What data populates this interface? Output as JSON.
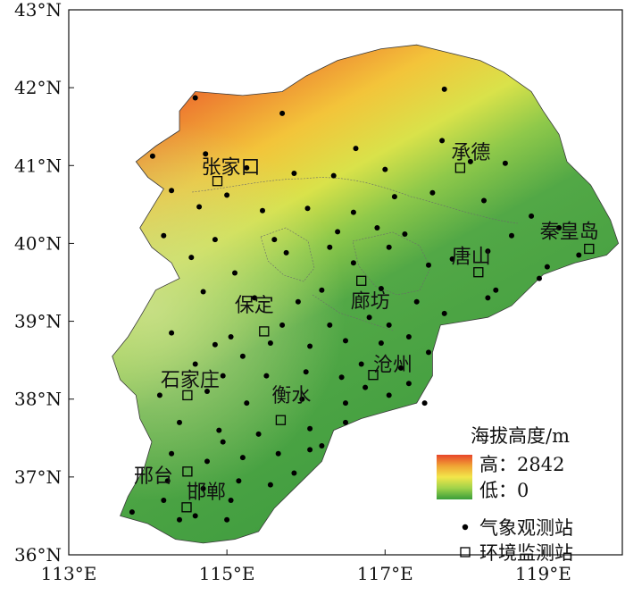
{
  "axes": {
    "x_ticks": [
      {
        "lon": 113,
        "label": "113°E"
      },
      {
        "lon": 115,
        "label": "115°E"
      },
      {
        "lon": 117,
        "label": "117°E"
      },
      {
        "lon": 119,
        "label": "119°E"
      }
    ],
    "y_ticks": [
      {
        "lat": 43,
        "label": "43°N"
      },
      {
        "lat": 42,
        "label": "42°N"
      },
      {
        "lat": 41,
        "label": "41°N"
      },
      {
        "lat": 40,
        "label": "40°N"
      },
      {
        "lat": 39,
        "label": "39°N"
      },
      {
        "lat": 38,
        "label": "38°N"
      },
      {
        "lat": 37,
        "label": "37°N"
      },
      {
        "lat": 36,
        "label": "36°N"
      }
    ],
    "lon_range": [
      113,
      120
    ],
    "lat_range": [
      36,
      43
    ]
  },
  "cities": [
    {
      "name": "张家口",
      "lon": 114.88,
      "lat": 40.8
    },
    {
      "name": "承德",
      "lon": 117.95,
      "lat": 40.97
    },
    {
      "name": "秦皇岛",
      "lon": 119.58,
      "lat": 39.93
    },
    {
      "name": "唐山",
      "lon": 118.18,
      "lat": 39.63
    },
    {
      "name": "保定",
      "lon": 115.47,
      "lat": 38.87
    },
    {
      "name": "廊坊",
      "lon": 116.7,
      "lat": 39.52
    },
    {
      "name": "沧州",
      "lon": 116.85,
      "lat": 38.31
    },
    {
      "name": "石家庄",
      "lon": 114.5,
      "lat": 38.05
    },
    {
      "name": "衡水",
      "lon": 115.68,
      "lat": 37.73
    },
    {
      "name": "邢台",
      "lon": 114.5,
      "lat": 37.07
    },
    {
      "name": "邯郸",
      "lon": 114.49,
      "lat": 36.61
    }
  ],
  "legend": {
    "title": "海拔高度/m",
    "high_label": "高：2842",
    "low_label": "低：0",
    "elevation_max": 2842,
    "elevation_min": 0,
    "gradient_colors": [
      "#e8452a",
      "#f0a434",
      "#f2e64a",
      "#9fd24a",
      "#3a9e3a"
    ],
    "weather_station_label": "气象观测站",
    "env_station_label": "环境监测站"
  },
  "colors": {
    "mountain_high": "#e8452a",
    "mountain_mid": "#f2c83a",
    "plain": "#4aa347",
    "border": "#555555"
  },
  "weather_stations": [
    [
      114.6,
      41.87
    ],
    [
      117.75,
      41.98
    ],
    [
      115.7,
      41.67
    ],
    [
      114.06,
      41.12
    ],
    [
      114.73,
      41.15
    ],
    [
      115.25,
      40.97
    ],
    [
      115.85,
      40.9
    ],
    [
      116.63,
      41.22
    ],
    [
      117.72,
      41.32
    ],
    [
      118.08,
      41.05
    ],
    [
      118.52,
      41.03
    ],
    [
      117.0,
      40.95
    ],
    [
      116.35,
      40.87
    ],
    [
      115.0,
      40.62
    ],
    [
      114.3,
      40.68
    ],
    [
      114.65,
      40.47
    ],
    [
      115.45,
      40.42
    ],
    [
      116.02,
      40.45
    ],
    [
      116.6,
      40.4
    ],
    [
      117.12,
      40.6
    ],
    [
      117.6,
      40.65
    ],
    [
      118.25,
      40.55
    ],
    [
      118.85,
      40.35
    ],
    [
      119.2,
      40.2
    ],
    [
      119.45,
      39.85
    ],
    [
      114.2,
      40.1
    ],
    [
      114.55,
      39.82
    ],
    [
      115.1,
      39.62
    ],
    [
      115.75,
      39.88
    ],
    [
      116.3,
      39.95
    ],
    [
      116.6,
      39.75
    ],
    [
      117.05,
      39.95
    ],
    [
      117.55,
      39.72
    ],
    [
      117.85,
      39.8
    ],
    [
      118.4,
      39.4
    ],
    [
      118.95,
      39.55
    ],
    [
      119.05,
      39.7
    ],
    [
      114.7,
      39.38
    ],
    [
      115.35,
      39.3
    ],
    [
      115.9,
      39.25
    ],
    [
      116.2,
      39.4
    ],
    [
      116.95,
      39.42
    ],
    [
      117.4,
      39.25
    ],
    [
      117.75,
      39.1
    ],
    [
      118.3,
      39.3
    ],
    [
      114.3,
      38.85
    ],
    [
      115.05,
      38.8
    ],
    [
      115.55,
      38.72
    ],
    [
      116.05,
      38.68
    ],
    [
      116.5,
      38.75
    ],
    [
      116.95,
      38.72
    ],
    [
      117.3,
      38.8
    ],
    [
      114.6,
      38.45
    ],
    [
      114.95,
      38.3
    ],
    [
      115.5,
      38.3
    ],
    [
      116.0,
      38.35
    ],
    [
      116.45,
      38.28
    ],
    [
      117.2,
      38.4
    ],
    [
      117.55,
      38.6
    ],
    [
      114.15,
      38.05
    ],
    [
      114.75,
      38.1
    ],
    [
      115.25,
      37.95
    ],
    [
      115.95,
      38.0
    ],
    [
      116.5,
      37.95
    ],
    [
      117.05,
      38.05
    ],
    [
      114.4,
      37.7
    ],
    [
      114.9,
      37.6
    ],
    [
      115.4,
      37.55
    ],
    [
      116.05,
      37.62
    ],
    [
      116.5,
      37.7
    ],
    [
      114.3,
      37.3
    ],
    [
      114.75,
      37.2
    ],
    [
      115.2,
      37.25
    ],
    [
      115.65,
      37.3
    ],
    [
      116.05,
      37.35
    ],
    [
      114.25,
      36.95
    ],
    [
      114.7,
      36.85
    ],
    [
      115.15,
      36.95
    ],
    [
      115.55,
      36.9
    ],
    [
      114.2,
      36.7
    ],
    [
      114.6,
      36.5
    ],
    [
      115.0,
      36.45
    ],
    [
      113.8,
      36.55
    ],
    [
      114.4,
      36.45
    ],
    [
      115.05,
      36.7
    ],
    [
      116.4,
      40.15
    ],
    [
      116.9,
      40.2
    ],
    [
      117.25,
      40.12
    ],
    [
      118.6,
      40.1
    ],
    [
      118.3,
      39.9
    ],
    [
      115.6,
      40.05
    ],
    [
      114.85,
      40.05
    ],
    [
      116.8,
      39.05
    ],
    [
      117.05,
      38.95
    ],
    [
      116.3,
      38.95
    ],
    [
      115.7,
      38.95
    ],
    [
      115.2,
      38.55
    ],
    [
      114.85,
      38.7
    ],
    [
      116.7,
      38.45
    ],
    [
      117.5,
      37.95
    ],
    [
      116.2,
      37.4
    ],
    [
      115.85,
      37.05
    ],
    [
      114.95,
      37.45
    ],
    [
      116.75,
      38.15
    ],
    [
      117.3,
      38.2
    ]
  ],
  "env_stations": [
    [
      114.88,
      40.8
    ],
    [
      117.95,
      40.97
    ],
    [
      119.58,
      39.93
    ],
    [
      118.18,
      39.63
    ],
    [
      116.7,
      39.52
    ],
    [
      115.47,
      38.87
    ],
    [
      116.85,
      38.31
    ],
    [
      114.5,
      38.05
    ],
    [
      115.68,
      37.73
    ],
    [
      114.5,
      37.07
    ],
    [
      114.49,
      36.61
    ]
  ]
}
